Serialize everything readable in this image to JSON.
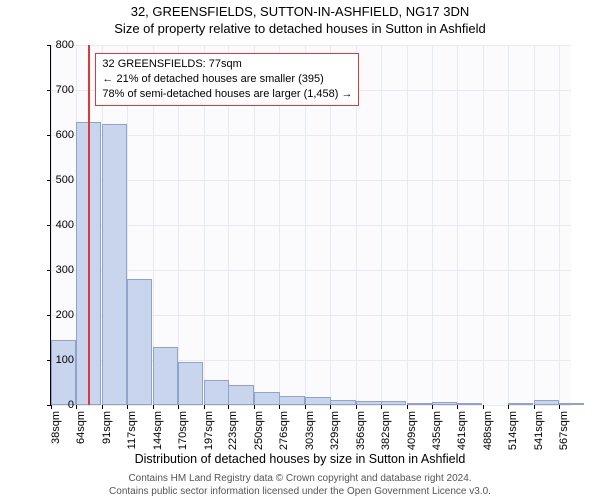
{
  "title": "32, GREENSFIELDS, SUTTON-IN-ASHFIELD, NG17 3DN",
  "subtitle": "Size of property relative to detached houses in Sutton in Ashfield",
  "chart": {
    "type": "histogram",
    "background_color": "#fbfbfe",
    "grid_color": "#e9e9f2",
    "bar_fill": "#c8d5ed",
    "bar_border": "#8fa3cc",
    "marker_color": "#d93b3b",
    "bin_width_sqm": 26.5,
    "xlim": [
      38,
      580
    ],
    "ylim": [
      0,
      800
    ],
    "ytick_step": 100,
    "xticks": [
      38,
      64,
      91,
      117,
      144,
      170,
      197,
      223,
      250,
      276,
      303,
      329,
      356,
      382,
      409,
      435,
      461,
      488,
      514,
      541,
      567
    ],
    "xtick_suffix": "sqm",
    "values": [
      145,
      630,
      625,
      280,
      130,
      95,
      55,
      45,
      30,
      20,
      18,
      12,
      10,
      8,
      2,
      6,
      4,
      0,
      2,
      12,
      2
    ],
    "marker_x": 77,
    "ylabel": "Number of detached properties",
    "xlabel": "Distribution of detached houses by size in Sutton in Ashfield",
    "title_fontsize": 13,
    "label_fontsize": 12,
    "tick_fontsize": 11
  },
  "annotation": {
    "line1": "32 GREENSFIELDS: 77sqm",
    "line2": "← 21% of detached houses are smaller (395)",
    "line3": "78% of semi-detached houses are larger (1,458) →"
  },
  "footer": {
    "line1": "Contains HM Land Registry data © Crown copyright and database right 2024.",
    "line2": "Contains public sector information licensed under the Open Government Licence v3.0."
  }
}
